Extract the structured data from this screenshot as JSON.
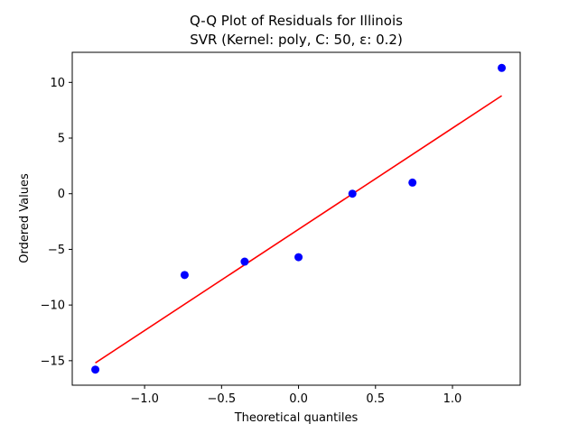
{
  "chart_data": {
    "type": "scatter",
    "title_line1": "Q-Q Plot of Residuals for Illinois",
    "title_line2": "SVR (Kernel: poly, C: 50, ε: 0.2)",
    "xlabel": "Theoretical quantiles",
    "ylabel": "Ordered Values",
    "xlim": [
      -1.47,
      1.44
    ],
    "ylim": [
      -17.2,
      12.7
    ],
    "xticks": [
      -1.0,
      -0.5,
      0.0,
      0.5,
      1.0
    ],
    "xtick_labels": [
      "−1.0",
      "−0.5",
      "0.0",
      "0.5",
      "1.0"
    ],
    "yticks": [
      -15,
      -10,
      -5,
      0,
      5,
      10
    ],
    "ytick_labels": [
      "−15",
      "−10",
      "−5",
      "0",
      "5",
      "10"
    ],
    "grid": false,
    "points": {
      "name": "residuals",
      "color": "#0000ff",
      "x": [
        -1.32,
        -0.74,
        -0.35,
        0.0,
        0.35,
        0.74,
        1.32
      ],
      "y": [
        -15.8,
        -7.3,
        -6.1,
        -5.7,
        0.0,
        1.0,
        11.3
      ]
    },
    "fit_line": {
      "name": "fit",
      "color": "#ff0000",
      "x": [
        -1.32,
        1.32
      ],
      "y": [
        -15.2,
        8.8
      ]
    }
  }
}
